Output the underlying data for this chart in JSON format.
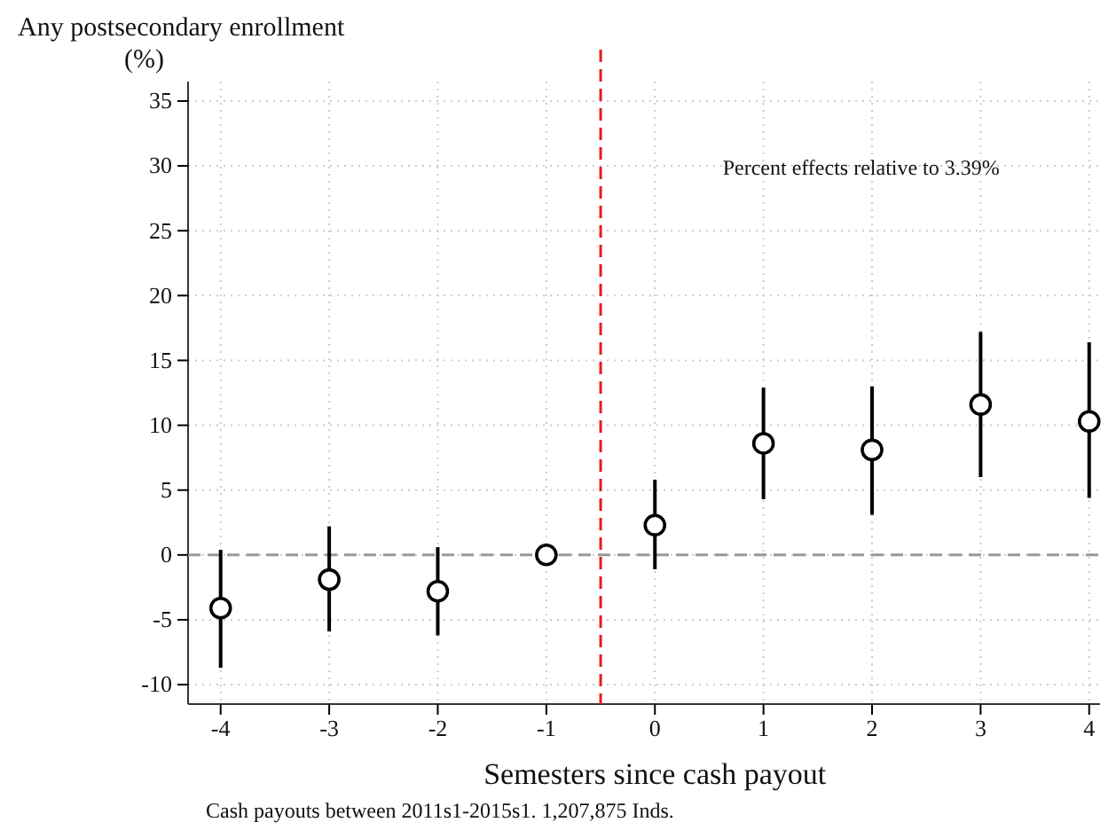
{
  "chart_data": {
    "type": "scatter",
    "ylabel": "Any postsecondary enrollment\n(%)",
    "xlabel": "Semesters since cash payout",
    "x": [
      -4,
      -3,
      -2,
      -1,
      0,
      1,
      2,
      3,
      4
    ],
    "series": [
      {
        "color": "#000000",
        "values": [
          -4.1,
          -1.9,
          -2.8,
          0,
          2.3,
          8.6,
          8.1,
          11.6,
          10.3
        ],
        "errors": [
          [
            -8.7,
            0.4
          ],
          [
            -5.9,
            2.2
          ],
          [
            -6.2,
            0.6
          ],
          null,
          [
            -1.1,
            5.8
          ],
          [
            4.3,
            12.9
          ],
          [
            3.1,
            13.0
          ],
          [
            6.0,
            17.2
          ],
          [
            4.4,
            16.4
          ]
        ]
      }
    ],
    "xlim": [
      -4.3,
      4.1
    ],
    "xticks": [
      -4,
      -3,
      -2,
      -1,
      0,
      1,
      2,
      3,
      4
    ],
    "ylim": [
      -11.5,
      36.5
    ],
    "yticks": [
      -10,
      -5,
      0,
      5,
      10,
      15,
      20,
      25,
      30,
      35
    ],
    "grid": true,
    "marker": "circle",
    "ref_lines": [
      {
        "axis": "x",
        "value": -0.5,
        "color": "#e8191b",
        "line_style": "dashed"
      },
      {
        "axis": "y",
        "value": 0,
        "color": "#999999",
        "line_style": "dashed"
      }
    ],
    "annotations": [
      "Percent effects relative to 3.39%",
      "Cash payouts between 2011s1-2015s1. 1,207,875 Inds."
    ]
  }
}
